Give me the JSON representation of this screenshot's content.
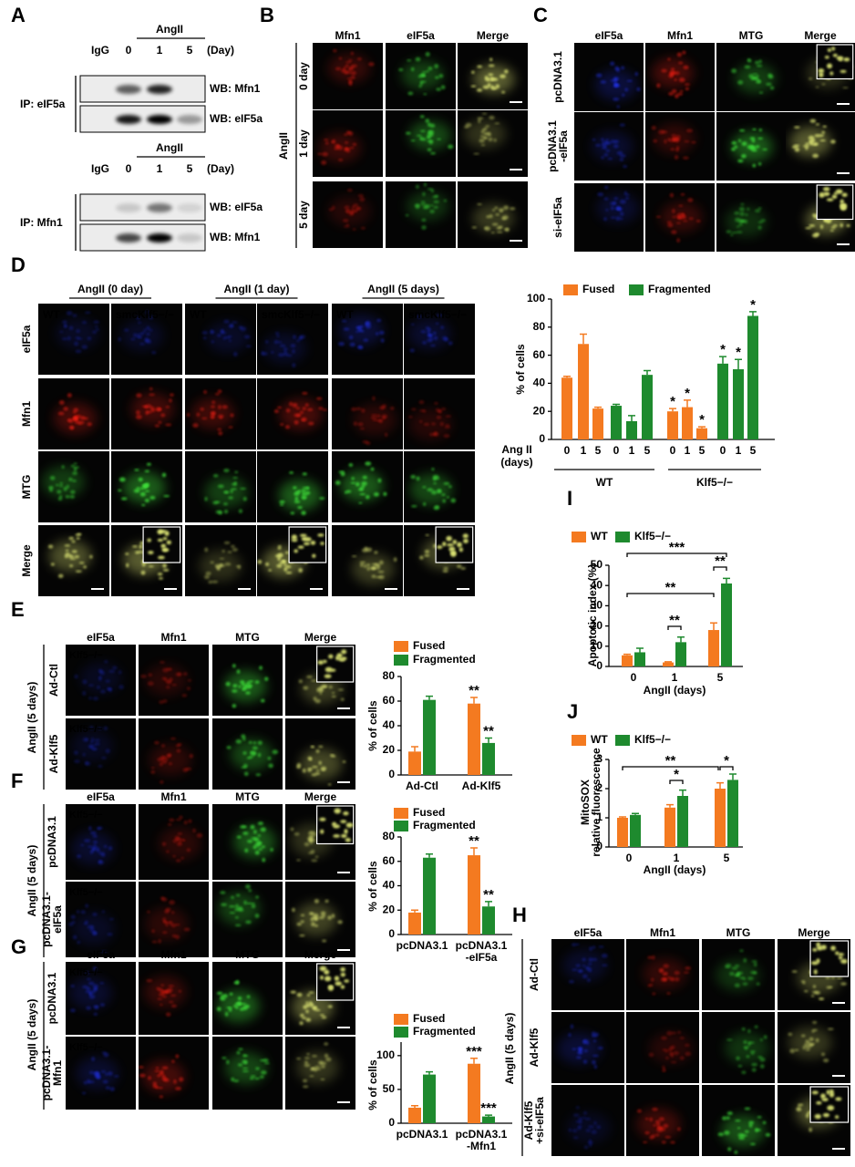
{
  "panels": {
    "A": {
      "label": "A",
      "blots": [
        {
          "treatment": "AngII",
          "lanes": [
            "IgG",
            "0",
            "1",
            "5"
          ],
          "unit": "(Day)",
          "ip": "IP: eIF5a",
          "rows": [
            "WB: Mfn1",
            "WB: eIF5a"
          ]
        },
        {
          "treatment": "AngII",
          "lanes": [
            "IgG",
            "0",
            "1",
            "5"
          ],
          "unit": "(Day)",
          "ip": "IP: Mfn1",
          "rows": [
            "WB: eIF5a",
            "WB: Mfn1"
          ]
        }
      ]
    },
    "B": {
      "label": "B",
      "treatment": "AngII",
      "columns": [
        {
          "name": "Mfn1",
          "color": "#e0201c"
        },
        {
          "name": "eIF5a",
          "color": "#2eaa3a"
        },
        {
          "name": "Merge",
          "color": "#000000"
        }
      ],
      "rows": [
        "0 day",
        "1 day",
        "5 day"
      ]
    },
    "C": {
      "label": "C",
      "columns": [
        {
          "name": "eIF5a",
          "color": "#3a7fe0"
        },
        {
          "name": "Mfn1",
          "color": "#e0201c"
        },
        {
          "name": "MTG",
          "color": "#2eaa3a"
        },
        {
          "name": "Merge",
          "color": "#000000"
        }
      ],
      "rows": [
        [
          "pcDNA3.1"
        ],
        [
          "pcDNA3.1",
          "-eIF5a"
        ],
        [
          "si-eIF5a"
        ]
      ]
    },
    "D": {
      "label": "D",
      "groups": [
        "AngII (0 day)",
        "AngII (1 day)",
        "AngII (5 days)"
      ],
      "column_labels": [
        "WT",
        "smcKlf5−/−",
        "WT",
        "smcKlf5−/−",
        "WT",
        "smcKlf5−/−"
      ],
      "rows": [
        {
          "name": "eIF5a",
          "color": "#3a7fe0"
        },
        {
          "name": "Mfn1",
          "color": "#e0201c"
        },
        {
          "name": "MTG",
          "color": "#2eaa3a"
        },
        {
          "name": "Merge",
          "color": "#000000"
        }
      ]
    },
    "E": {
      "label": "E",
      "treatment": "AngII (5 days)",
      "columns": [
        {
          "name": "eIF5a",
          "color": "#3a7fe0"
        },
        {
          "name": "Mfn1",
          "color": "#e0201c"
        },
        {
          "name": "MTG",
          "color": "#2eaa3a"
        },
        {
          "name": "Merge",
          "color": "#000000"
        }
      ],
      "rows": [
        [
          "Ad-Ctl"
        ],
        [
          "Ad-Klf5"
        ]
      ],
      "tile_labels": [
        "Klf5−/−",
        "Klf5−/−"
      ]
    },
    "F": {
      "label": "F",
      "treatment": "AngII (5 days)",
      "columns": [
        {
          "name": "eIF5a",
          "color": "#3a7fe0"
        },
        {
          "name": "Mfn1",
          "color": "#e0201c"
        },
        {
          "name": "MTG",
          "color": "#2eaa3a"
        },
        {
          "name": "Merge",
          "color": "#000000"
        }
      ],
      "rows": [
        [
          "pcDNA3.1"
        ],
        [
          "pcDNA3.1-",
          "eIF5a"
        ]
      ],
      "tile_labels": [
        "Klf5−/−",
        "Klf5−/−"
      ]
    },
    "G": {
      "label": "G",
      "treatment": "AngII (5 days)",
      "columns": [
        {
          "name": "eIF5a",
          "color": "#3a7fe0"
        },
        {
          "name": "Mfn1",
          "color": "#e0201c"
        },
        {
          "name": "MTG",
          "color": "#2eaa3a"
        },
        {
          "name": "Merge",
          "color": "#000000"
        }
      ],
      "rows": [
        [
          "pcDNA3.1"
        ],
        [
          "pcDNA3.1-",
          "Mfn1"
        ]
      ],
      "tile_labels": [
        "Klf5−/−",
        "Klf5−/−"
      ]
    },
    "H": {
      "label": "H",
      "treatment": "AngII (5 days)",
      "columns": [
        {
          "name": "eIF5a",
          "color": "#3a7fe0"
        },
        {
          "name": "Mfn1",
          "color": "#e0201c"
        },
        {
          "name": "MTG",
          "color": "#2eaa3a"
        },
        {
          "name": "Merge",
          "color": "#000000"
        }
      ],
      "rows": [
        [
          "Ad-Ctl"
        ],
        [
          "Ad-Klf5"
        ],
        [
          "Ad-Klf5",
          "+si-eIF5a"
        ]
      ]
    }
  },
  "chart_data": [
    {
      "type": "bar",
      "ylabel": "% of cells",
      "xlabel": [
        "Ang II",
        "(days)"
      ],
      "ylim": [
        0,
        100
      ],
      "yticks": [
        0,
        20,
        40,
        60,
        80,
        100
      ],
      "categories": [
        "0",
        "1",
        "5",
        "0",
        "1",
        "5",
        "0",
        "1",
        "5",
        "0",
        "1",
        "5"
      ],
      "groups": [
        "WT",
        "Klf5−/−"
      ],
      "series": [
        {
          "name": "Fused",
          "color": "#f47a20",
          "values": [
            44,
            68,
            22,
            null,
            null,
            null,
            20,
            23,
            8,
            null,
            null,
            null
          ],
          "errors": [
            1,
            7,
            1,
            null,
            null,
            null,
            2,
            5,
            1,
            null,
            null,
            null
          ],
          "significance": [
            null,
            null,
            null,
            null,
            null,
            null,
            "*",
            "*",
            "*",
            null,
            null,
            null
          ]
        },
        {
          "name": "Fragmented",
          "color": "#1e8a2e",
          "values": [
            null,
            null,
            null,
            24,
            13,
            46,
            null,
            null,
            null,
            54,
            50,
            88
          ],
          "errors": [
            null,
            null,
            null,
            1,
            4,
            3,
            null,
            null,
            null,
            5,
            7,
            3
          ],
          "significance": [
            null,
            null,
            null,
            null,
            null,
            null,
            null,
            null,
            null,
            "*",
            "*",
            "*"
          ]
        }
      ]
    },
    {
      "type": "bar",
      "panel": "I",
      "ylabel": "Apoptotic index (%)",
      "xlabel": "AngII (days)",
      "ylim": [
        0,
        50
      ],
      "yticks": [
        0,
        10,
        20,
        30,
        40,
        50
      ],
      "categories": [
        "0",
        "1",
        "5"
      ],
      "series": [
        {
          "name": "WT",
          "color": "#f47a20",
          "values": [
            5.5,
            2,
            18
          ],
          "errors": [
            0.5,
            0.3,
            3.5
          ]
        },
        {
          "name": "Klf5−/−",
          "color": "#1e8a2e",
          "values": [
            7,
            12,
            41
          ],
          "errors": [
            2,
            2.5,
            2.5
          ]
        }
      ],
      "brackets": [
        "***",
        "**",
        "**",
        "**"
      ]
    },
    {
      "type": "bar",
      "panel": "J",
      "ylabel": [
        "MitoSOX",
        "relative fluorescence"
      ],
      "xlabel": "AngII (days)",
      "ylim": [
        0,
        3
      ],
      "yticks": [
        0,
        1,
        2,
        3
      ],
      "categories": [
        "0",
        "1",
        "5"
      ],
      "series": [
        {
          "name": "WT",
          "color": "#f47a20",
          "values": [
            1.0,
            1.35,
            2.0
          ],
          "errors": [
            0.03,
            0.1,
            0.2
          ]
        },
        {
          "name": "Klf5−/−",
          "color": "#1e8a2e",
          "values": [
            1.1,
            1.75,
            2.3
          ],
          "errors": [
            0.05,
            0.2,
            0.2
          ]
        }
      ],
      "brackets": [
        "**",
        "*",
        "*"
      ]
    },
    {
      "type": "bar",
      "ylabel": "% of cells",
      "ylim": [
        0,
        80
      ],
      "yticks": [
        0,
        20,
        40,
        60,
        80
      ],
      "categories": [
        "Ad-Ctl",
        "Ad-Klf5"
      ],
      "series": [
        {
          "name": "Fused",
          "color": "#f47a20",
          "values": [
            19,
            58
          ],
          "errors": [
            4,
            5
          ],
          "significance": [
            null,
            "**"
          ]
        },
        {
          "name": "Fragmented",
          "color": "#1e8a2e",
          "values": [
            61,
            26
          ],
          "errors": [
            3,
            4
          ],
          "significance": [
            null,
            "**"
          ]
        }
      ]
    },
    {
      "type": "bar",
      "ylabel": "% of cells",
      "ylim": [
        0,
        80
      ],
      "yticks": [
        0,
        20,
        40,
        60,
        80
      ],
      "categories": [
        "pcDNA3.1",
        [
          "pcDNA3.1",
          "-eIF5a"
        ]
      ],
      "series": [
        {
          "name": "Fused",
          "color": "#f47a20",
          "values": [
            18,
            65
          ],
          "errors": [
            2,
            6
          ],
          "significance": [
            null,
            "**"
          ]
        },
        {
          "name": "Fragmented",
          "color": "#1e8a2e",
          "values": [
            63,
            23
          ],
          "errors": [
            3,
            4
          ],
          "significance": [
            null,
            "**"
          ]
        }
      ]
    },
    {
      "type": "bar",
      "ylabel": "% of cells",
      "ylim": [
        0,
        120
      ],
      "yticks": [
        0,
        50,
        100
      ],
      "categories": [
        "pcDNA3.1",
        [
          "pcDNA3.1",
          "-Mfn1"
        ]
      ],
      "series": [
        {
          "name": "Fused",
          "color": "#f47a20",
          "values": [
            23,
            88
          ],
          "errors": [
            3,
            8
          ],
          "significance": [
            null,
            "***"
          ]
        },
        {
          "name": "Fragmented",
          "color": "#1e8a2e",
          "values": [
            72,
            10
          ],
          "errors": [
            4,
            2
          ],
          "significance": [
            null,
            "***"
          ]
        }
      ]
    }
  ]
}
